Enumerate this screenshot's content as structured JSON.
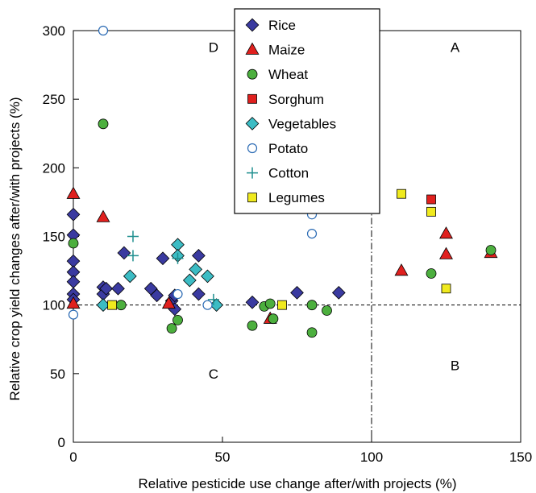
{
  "chart_data": {
    "type": "scatter",
    "title": "",
    "xlabel": "Relative pesticide use change after/with projects (%)",
    "ylabel": "Relative crop yield changes after/with projects (%)",
    "xlim": [
      0,
      150
    ],
    "ylim": [
      0,
      300
    ],
    "xticks": [
      0,
      50,
      100,
      150
    ],
    "yticks": [
      0,
      50,
      100,
      150,
      200,
      250,
      300
    ],
    "grid": false,
    "legend_position": "top-center",
    "reference_lines": [
      {
        "orientation": "horizontal",
        "value": 100,
        "style": "dashed"
      },
      {
        "orientation": "vertical",
        "value": 100,
        "style": "dash-dot"
      }
    ],
    "quadrant_labels": [
      {
        "text": "D",
        "x": 47,
        "y": 288
      },
      {
        "text": "A",
        "x": 128,
        "y": 288
      },
      {
        "text": "C",
        "x": 47,
        "y": 50
      },
      {
        "text": "B",
        "x": 128,
        "y": 56
      }
    ],
    "series": [
      {
        "name": "Rice",
        "marker": "diamond",
        "color": "#3a3aa0",
        "points": [
          {
            "x": 0,
            "y": 166
          },
          {
            "x": 0,
            "y": 151
          },
          {
            "x": 0,
            "y": 132
          },
          {
            "x": 0,
            "y": 124
          },
          {
            "x": 0,
            "y": 117
          },
          {
            "x": 0,
            "y": 108
          },
          {
            "x": 0,
            "y": 104
          },
          {
            "x": 10,
            "y": 113
          },
          {
            "x": 10,
            "y": 108
          },
          {
            "x": 11,
            "y": 112
          },
          {
            "x": 15,
            "y": 112
          },
          {
            "x": 17,
            "y": 138
          },
          {
            "x": 26,
            "y": 112
          },
          {
            "x": 28,
            "y": 107
          },
          {
            "x": 30,
            "y": 134
          },
          {
            "x": 33,
            "y": 103
          },
          {
            "x": 34,
            "y": 107
          },
          {
            "x": 34,
            "y": 97
          },
          {
            "x": 42,
            "y": 136
          },
          {
            "x": 42,
            "y": 108
          },
          {
            "x": 60,
            "y": 102
          },
          {
            "x": 75,
            "y": 109
          },
          {
            "x": 89,
            "y": 109
          }
        ]
      },
      {
        "name": "Maize",
        "marker": "triangle",
        "color": "#e0201e",
        "points": [
          {
            "x": 0,
            "y": 181
          },
          {
            "x": 0,
            "y": 101
          },
          {
            "x": 10,
            "y": 164
          },
          {
            "x": 32,
            "y": 101
          },
          {
            "x": 66,
            "y": 90
          },
          {
            "x": 110,
            "y": 125
          },
          {
            "x": 125,
            "y": 152
          },
          {
            "x": 125,
            "y": 137
          },
          {
            "x": 140,
            "y": 138
          }
        ]
      },
      {
        "name": "Wheat",
        "marker": "circle",
        "color": "#4caf3e",
        "points": [
          {
            "x": 0,
            "y": 145
          },
          {
            "x": 10,
            "y": 232
          },
          {
            "x": 16,
            "y": 100
          },
          {
            "x": 33,
            "y": 83
          },
          {
            "x": 35,
            "y": 89
          },
          {
            "x": 60,
            "y": 85
          },
          {
            "x": 64,
            "y": 99
          },
          {
            "x": 66,
            "y": 101
          },
          {
            "x": 67,
            "y": 90
          },
          {
            "x": 80,
            "y": 80
          },
          {
            "x": 80,
            "y": 100
          },
          {
            "x": 85,
            "y": 96
          },
          {
            "x": 120,
            "y": 123
          },
          {
            "x": 140,
            "y": 140
          }
        ]
      },
      {
        "name": "Sorghum",
        "marker": "square",
        "color": "#e0201e",
        "points": [
          {
            "x": 120,
            "y": 177
          }
        ]
      },
      {
        "name": "Vegetables",
        "marker": "diamond",
        "color": "#3cbcc4",
        "points": [
          {
            "x": 10,
            "y": 100
          },
          {
            "x": 19,
            "y": 121
          },
          {
            "x": 35,
            "y": 144
          },
          {
            "x": 35,
            "y": 136
          },
          {
            "x": 39,
            "y": 118
          },
          {
            "x": 41,
            "y": 126
          },
          {
            "x": 45,
            "y": 121
          },
          {
            "x": 48,
            "y": 100
          }
        ]
      },
      {
        "name": "Potato",
        "marker": "open-circle",
        "color": "#2a6ab4",
        "points": [
          {
            "x": 0,
            "y": 93
          },
          {
            "x": 10,
            "y": 300
          },
          {
            "x": 35,
            "y": 108
          },
          {
            "x": 45,
            "y": 100
          },
          {
            "x": 80,
            "y": 166
          },
          {
            "x": 80,
            "y": 152
          }
        ]
      },
      {
        "name": "Cotton",
        "marker": "plus",
        "color": "#1f8f8f",
        "points": [
          {
            "x": 20,
            "y": 150
          },
          {
            "x": 20,
            "y": 136
          },
          {
            "x": 35,
            "y": 134
          },
          {
            "x": 47,
            "y": 104
          }
        ]
      },
      {
        "name": "Legumes",
        "marker": "square",
        "color": "#f0ea1e",
        "points": [
          {
            "x": 13,
            "y": 100
          },
          {
            "x": 70,
            "y": 100
          },
          {
            "x": 110,
            "y": 181
          },
          {
            "x": 120,
            "y": 168
          },
          {
            "x": 125,
            "y": 112
          }
        ]
      }
    ]
  }
}
